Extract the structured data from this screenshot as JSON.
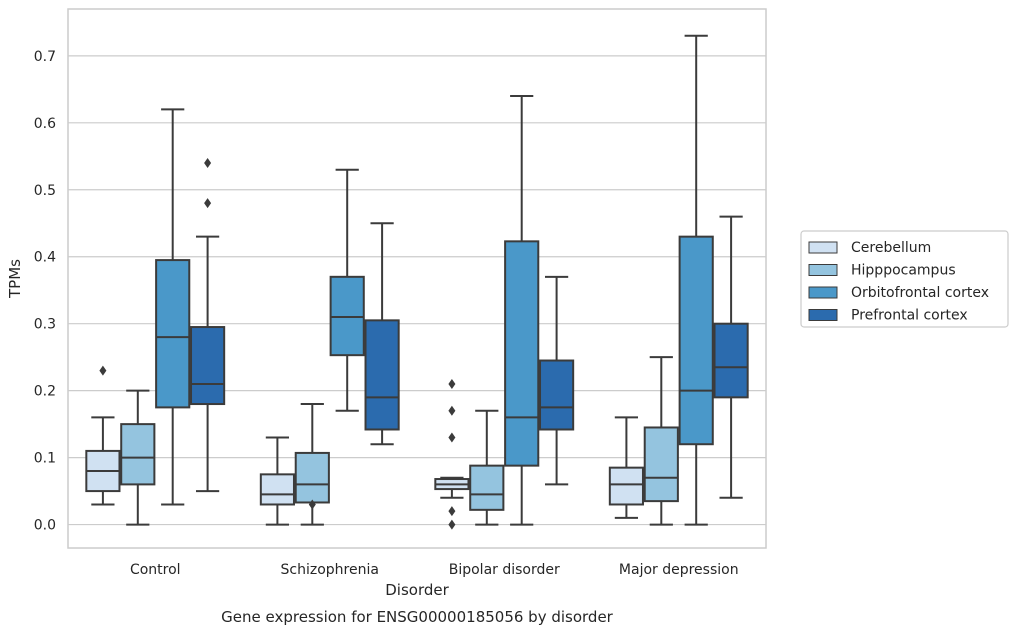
{
  "chart_data": {
    "type": "box",
    "xlabel": "Disorder",
    "ylabel": "TPMs",
    "caption": "Gene expression for ENSG00000185056 by disorder",
    "ylim": [
      -0.035,
      0.77
    ],
    "yticks": [
      "0.0",
      "0.1",
      "0.2",
      "0.3",
      "0.4",
      "0.5",
      "0.6",
      "0.7"
    ],
    "grid": "horizontal",
    "legend_position": "right",
    "categories": [
      "Control",
      "Schizophrenia",
      "Bipolar disorder",
      "Major depression"
    ],
    "series": [
      {
        "name": "Cerebellum",
        "color": "#d0e1f2",
        "boxes": [
          {
            "whisker_low": 0.03,
            "q1": 0.05,
            "median": 0.08,
            "q3": 0.11,
            "whisker_high": 0.16,
            "outliers": [
              0.23
            ]
          },
          {
            "whisker_low": 0.0,
            "q1": 0.03,
            "median": 0.045,
            "q3": 0.075,
            "whisker_high": 0.13,
            "outliers": []
          },
          {
            "whisker_low": 0.04,
            "q1": 0.053,
            "median": 0.06,
            "q3": 0.068,
            "whisker_high": 0.07,
            "outliers": [
              0.21,
              0.17,
              0.13,
              0.02,
              0.0
            ]
          },
          {
            "whisker_low": 0.01,
            "q1": 0.03,
            "median": 0.06,
            "q3": 0.085,
            "whisker_high": 0.16,
            "outliers": []
          }
        ]
      },
      {
        "name": "Hipppocampus",
        "color": "#94c4df",
        "boxes": [
          {
            "whisker_low": 0.0,
            "q1": 0.06,
            "median": 0.1,
            "q3": 0.15,
            "whisker_high": 0.2,
            "outliers": []
          },
          {
            "whisker_low": 0.0,
            "q1": 0.033,
            "median": 0.06,
            "q3": 0.107,
            "whisker_high": 0.18,
            "outliers": [
              0.03
            ]
          },
          {
            "whisker_low": 0.0,
            "q1": 0.022,
            "median": 0.045,
            "q3": 0.088,
            "whisker_high": 0.17,
            "outliers": []
          },
          {
            "whisker_low": 0.0,
            "q1": 0.035,
            "median": 0.07,
            "q3": 0.145,
            "whisker_high": 0.25,
            "outliers": []
          }
        ]
      },
      {
        "name": "Orbitofrontal cortex",
        "color": "#4a98c9",
        "boxes": [
          {
            "whisker_low": 0.03,
            "q1": 0.175,
            "median": 0.28,
            "q3": 0.395,
            "whisker_high": 0.62,
            "outliers": []
          },
          {
            "whisker_low": 0.17,
            "q1": 0.253,
            "median": 0.31,
            "q3": 0.37,
            "whisker_high": 0.53,
            "outliers": []
          },
          {
            "whisker_low": 0.0,
            "q1": 0.088,
            "median": 0.16,
            "q3": 0.423,
            "whisker_high": 0.64,
            "outliers": []
          },
          {
            "whisker_low": 0.0,
            "q1": 0.12,
            "median": 0.2,
            "q3": 0.43,
            "whisker_high": 0.73,
            "outliers": []
          }
        ]
      },
      {
        "name": "Prefrontal cortex",
        "color": "#2b6bae",
        "boxes": [
          {
            "whisker_low": 0.05,
            "q1": 0.18,
            "median": 0.21,
            "q3": 0.295,
            "whisker_high": 0.43,
            "outliers": [
              0.54,
              0.48
            ]
          },
          {
            "whisker_low": 0.12,
            "q1": 0.142,
            "median": 0.19,
            "q3": 0.305,
            "whisker_high": 0.45,
            "outliers": []
          },
          {
            "whisker_low": 0.06,
            "q1": 0.142,
            "median": 0.175,
            "q3": 0.245,
            "whisker_high": 0.37,
            "outliers": []
          },
          {
            "whisker_low": 0.04,
            "q1": 0.19,
            "median": 0.235,
            "q3": 0.3,
            "whisker_high": 0.46,
            "outliers": []
          }
        ]
      }
    ]
  }
}
